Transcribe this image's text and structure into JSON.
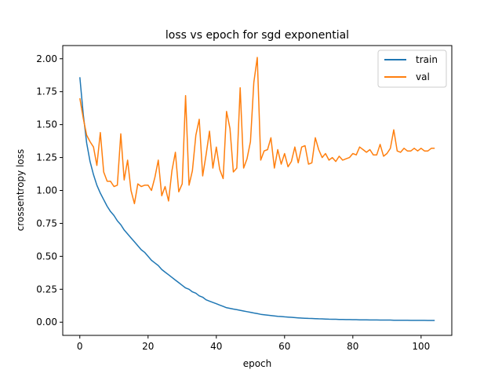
{
  "chart_data": {
    "type": "line",
    "title": "loss vs epoch for sgd exponential",
    "xlabel": "epoch",
    "ylabel": "crossentropy loss",
    "xlim": [
      -5,
      109
    ],
    "ylim": [
      -0.1,
      2.1
    ],
    "xticks": [
      0,
      20,
      40,
      60,
      80,
      100
    ],
    "yticks": [
      0.0,
      0.25,
      0.5,
      0.75,
      1.0,
      1.25,
      1.5,
      1.75,
      2.0
    ],
    "xtick_labels": [
      "0",
      "20",
      "40",
      "60",
      "80",
      "100"
    ],
    "ytick_labels": [
      "0.00",
      "0.25",
      "0.50",
      "0.75",
      "1.00",
      "1.25",
      "1.50",
      "1.75",
      "2.00"
    ],
    "grid": false,
    "legend_position": "top-right",
    "series": [
      {
        "name": "train",
        "color": "#1f77b4",
        "values": [
          1.86,
          1.58,
          1.36,
          1.22,
          1.12,
          1.04,
          0.98,
          0.93,
          0.88,
          0.84,
          0.81,
          0.77,
          0.74,
          0.7,
          0.67,
          0.64,
          0.61,
          0.58,
          0.55,
          0.53,
          0.5,
          0.47,
          0.45,
          0.43,
          0.4,
          0.38,
          0.36,
          0.34,
          0.32,
          0.3,
          0.28,
          0.26,
          0.25,
          0.23,
          0.22,
          0.2,
          0.19,
          0.17,
          0.16,
          0.15,
          0.14,
          0.13,
          0.12,
          0.11,
          0.105,
          0.1,
          0.095,
          0.09,
          0.085,
          0.08,
          0.075,
          0.07,
          0.065,
          0.06,
          0.057,
          0.054,
          0.051,
          0.048,
          0.045,
          0.043,
          0.041,
          0.039,
          0.037,
          0.035,
          0.033,
          0.031,
          0.03,
          0.029,
          0.028,
          0.027,
          0.026,
          0.025,
          0.024,
          0.023,
          0.022,
          0.022,
          0.021,
          0.021,
          0.02,
          0.02,
          0.019,
          0.019,
          0.018,
          0.018,
          0.018,
          0.017,
          0.017,
          0.017,
          0.016,
          0.016,
          0.016,
          0.016,
          0.015,
          0.015,
          0.015,
          0.015,
          0.015,
          0.014,
          0.014,
          0.014,
          0.014,
          0.014,
          0.013,
          0.013,
          0.013
        ]
      },
      {
        "name": "val",
        "color": "#ff7f0e",
        "values": [
          1.7,
          1.55,
          1.42,
          1.37,
          1.33,
          1.19,
          1.44,
          1.14,
          1.07,
          1.07,
          1.03,
          1.04,
          1.43,
          1.08,
          1.23,
          1.0,
          0.9,
          1.05,
          1.03,
          1.04,
          1.04,
          1.0,
          1.1,
          1.23,
          0.96,
          1.03,
          0.92,
          1.15,
          1.29,
          0.99,
          1.05,
          1.72,
          1.04,
          1.15,
          1.42,
          1.54,
          1.11,
          1.27,
          1.45,
          1.17,
          1.33,
          1.16,
          1.09,
          1.6,
          1.47,
          1.14,
          1.17,
          1.78,
          1.17,
          1.24,
          1.37,
          1.82,
          2.01,
          1.23,
          1.3,
          1.31,
          1.4,
          1.17,
          1.31,
          1.2,
          1.28,
          1.18,
          1.22,
          1.33,
          1.21,
          1.33,
          1.34,
          1.2,
          1.21,
          1.4,
          1.31,
          1.25,
          1.28,
          1.23,
          1.25,
          1.22,
          1.26,
          1.23,
          1.24,
          1.25,
          1.28,
          1.27,
          1.33,
          1.31,
          1.29,
          1.31,
          1.27,
          1.27,
          1.35,
          1.26,
          1.28,
          1.32,
          1.46,
          1.3,
          1.29,
          1.32,
          1.3,
          1.3,
          1.32,
          1.3,
          1.32,
          1.3,
          1.3,
          1.32,
          1.32
        ]
      }
    ]
  }
}
